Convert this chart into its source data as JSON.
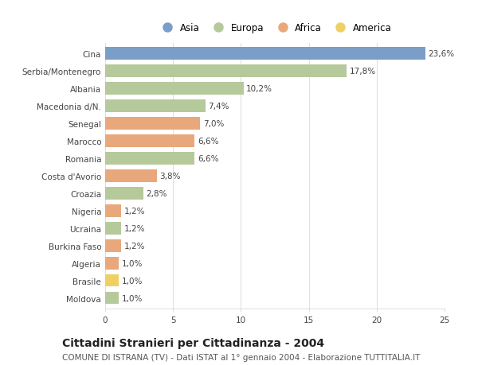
{
  "categories": [
    "Moldova",
    "Brasile",
    "Algeria",
    "Burkina Faso",
    "Ucraina",
    "Nigeria",
    "Croazia",
    "Costa d'Avorio",
    "Romania",
    "Marocco",
    "Senegal",
    "Macedonia d/N.",
    "Albania",
    "Serbia/Montenegro",
    "Cina"
  ],
  "values": [
    1.0,
    1.0,
    1.0,
    1.2,
    1.2,
    1.2,
    2.8,
    3.8,
    6.6,
    6.6,
    7.0,
    7.4,
    10.2,
    17.8,
    23.6
  ],
  "labels": [
    "1,0%",
    "1,0%",
    "1,0%",
    "1,2%",
    "1,2%",
    "1,2%",
    "2,8%",
    "3,8%",
    "6,6%",
    "6,6%",
    "7,0%",
    "7,4%",
    "10,2%",
    "17,8%",
    "23,6%"
  ],
  "continent": [
    "Europa",
    "America",
    "Africa",
    "Africa",
    "Europa",
    "Africa",
    "Europa",
    "Africa",
    "Europa",
    "Africa",
    "Africa",
    "Europa",
    "Europa",
    "Europa",
    "Asia"
  ],
  "continent_colors": {
    "Asia": "#7b9ec9",
    "Europa": "#b5c99a",
    "Africa": "#e8a87c",
    "America": "#f0d060"
  },
  "legend_order": [
    "Asia",
    "Europa",
    "Africa",
    "America"
  ],
  "title": "Cittadini Stranieri per Cittadinanza - 2004",
  "subtitle": "COMUNE DI ISTRANA (TV) - Dati ISTAT al 1° gennaio 2004 - Elaborazione TUTTITALIA.IT",
  "xlim": [
    0,
    25
  ],
  "xticks": [
    0,
    5,
    10,
    15,
    20,
    25
  ],
  "background_color": "#ffffff",
  "plot_bg_color": "#f9f9f9",
  "grid_color": "#e0e0e0",
  "bar_height": 0.72,
  "title_fontsize": 10,
  "subtitle_fontsize": 7.5,
  "label_fontsize": 7.5,
  "tick_fontsize": 7.5,
  "legend_fontsize": 8.5
}
